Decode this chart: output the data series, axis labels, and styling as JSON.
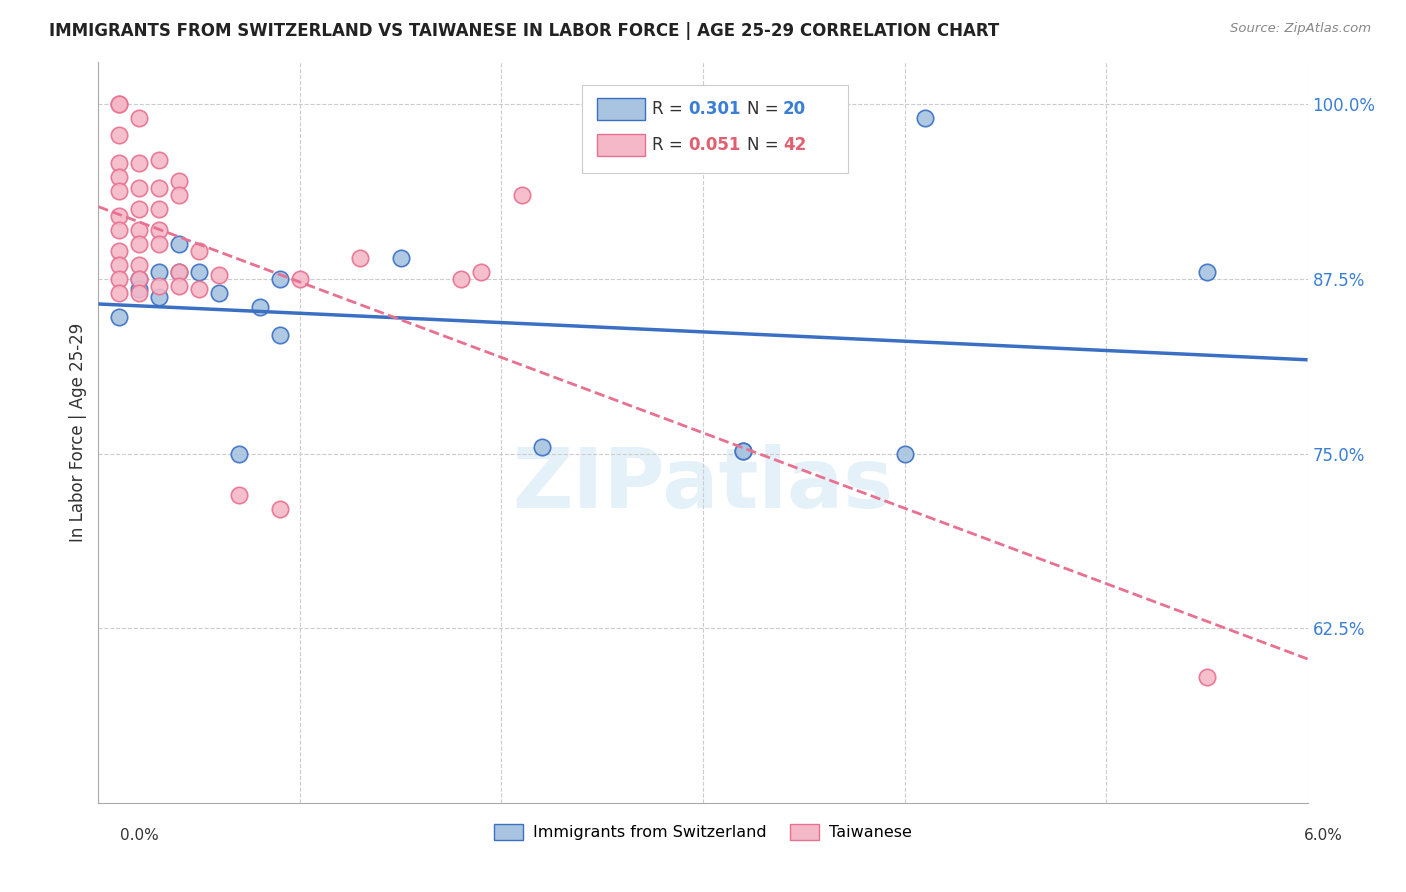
{
  "title": "IMMIGRANTS FROM SWITZERLAND VS TAIWANESE IN LABOR FORCE | AGE 25-29 CORRELATION CHART",
  "source": "Source: ZipAtlas.com",
  "ylabel": "In Labor Force | Age 25-29",
  "xmin": 0.0,
  "xmax": 0.06,
  "ymin": 0.5,
  "ymax": 1.03,
  "swiss_R": 0.301,
  "swiss_N": 20,
  "taiwanese_R": 0.051,
  "taiwanese_N": 42,
  "swiss_color": "#a8c4e0",
  "taiwanese_color": "#f4b8c8",
  "swiss_line_color": "#3a6fc4",
  "taiwanese_line_color": "#e87090",
  "swiss_x": [
    0.001,
    0.002,
    0.002,
    0.003,
    0.003,
    0.004,
    0.004,
    0.005,
    0.006,
    0.007,
    0.008,
    0.009,
    0.009,
    0.015,
    0.022,
    0.032,
    0.032,
    0.04,
    0.041,
    0.055
  ],
  "swiss_y": [
    0.848,
    0.875,
    0.868,
    0.88,
    0.862,
    0.88,
    0.9,
    0.88,
    0.865,
    0.75,
    0.855,
    0.875,
    0.835,
    0.89,
    0.755,
    0.752,
    0.752,
    0.75,
    0.99,
    0.88
  ],
  "taiwanese_x": [
    0.001,
    0.001,
    0.001,
    0.001,
    0.001,
    0.001,
    0.001,
    0.001,
    0.001,
    0.001,
    0.001,
    0.001,
    0.002,
    0.002,
    0.002,
    0.002,
    0.002,
    0.002,
    0.002,
    0.002,
    0.002,
    0.003,
    0.003,
    0.003,
    0.003,
    0.003,
    0.003,
    0.004,
    0.004,
    0.004,
    0.004,
    0.005,
    0.005,
    0.006,
    0.007,
    0.009,
    0.01,
    0.013,
    0.018,
    0.019,
    0.021,
    0.055
  ],
  "taiwanese_y": [
    1.0,
    1.0,
    0.978,
    0.958,
    0.948,
    0.938,
    0.92,
    0.91,
    0.895,
    0.885,
    0.875,
    0.865,
    0.99,
    0.958,
    0.94,
    0.925,
    0.91,
    0.9,
    0.885,
    0.875,
    0.865,
    0.96,
    0.94,
    0.925,
    0.91,
    0.9,
    0.87,
    0.945,
    0.935,
    0.88,
    0.87,
    0.895,
    0.868,
    0.878,
    0.72,
    0.71,
    0.875,
    0.89,
    0.875,
    0.88,
    0.935,
    0.59
  ]
}
